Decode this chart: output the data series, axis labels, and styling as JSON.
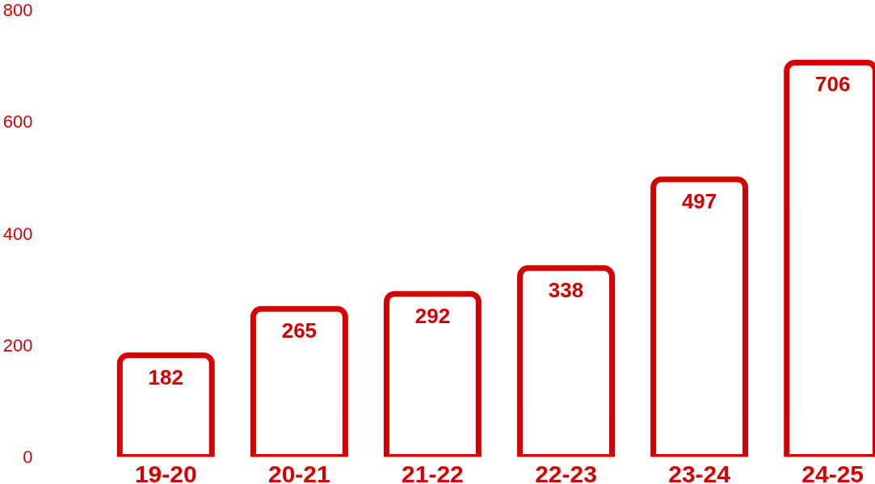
{
  "chart_data": {
    "type": "bar",
    "categories": [
      "19-20",
      "20-21",
      "21-22",
      "22-23",
      "23-24",
      "24-25"
    ],
    "values": [
      182,
      265,
      292,
      338,
      497,
      706
    ],
    "color": "#d40000",
    "ylim": [
      0,
      800
    ],
    "yticks": [
      0,
      200,
      400,
      600,
      800
    ],
    "grid": false,
    "data_labels": true
  }
}
